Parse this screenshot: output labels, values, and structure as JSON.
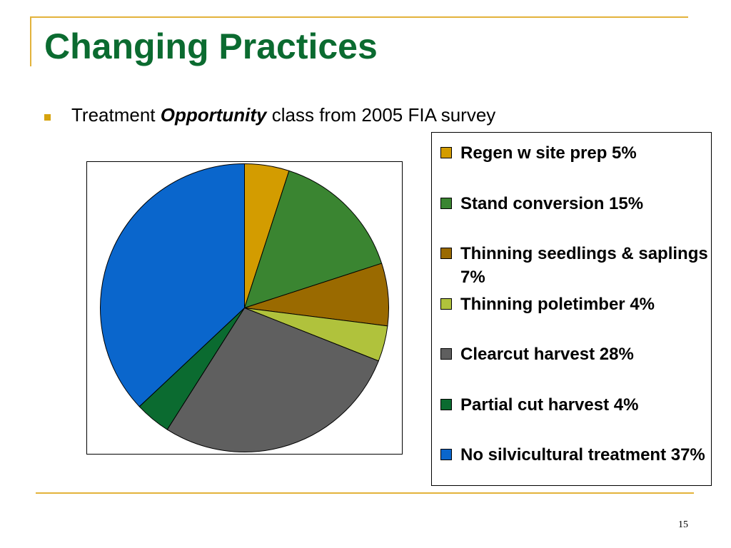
{
  "slide": {
    "title": "Changing Practices",
    "bullet": {
      "text_before": "Treatment ",
      "text_emphasis": "Opportunity",
      "text_after": " class from 2005 FIA survey"
    },
    "page_number": "15"
  },
  "colors": {
    "title": "#0b6b30",
    "accent_gold": "#e3b33b",
    "bullet_marker": "#d6a30e"
  },
  "chart_data": {
    "type": "pie",
    "title": "",
    "legend_position": "right",
    "slices": [
      {
        "label": "Regen w site prep 5%",
        "value": 5,
        "color": "#d39c00"
      },
      {
        "label": "Stand conversion 15%",
        "value": 15,
        "color": "#3a8531"
      },
      {
        "label": "Thinning seedlings & saplings 7%",
        "value": 7,
        "color": "#9a6a00"
      },
      {
        "label": "Thinning poletimber 4%",
        "value": 4,
        "color": "#b0c23c"
      },
      {
        "label": "Clearcut harvest 28%",
        "value": 28,
        "color": "#5f5f5f"
      },
      {
        "label": "Partial cut harvest 4%",
        "value": 4,
        "color": "#0b6b30"
      },
      {
        "label": "No silvicultural treatment 37%",
        "value": 37,
        "color": "#0a66cc"
      }
    ]
  }
}
